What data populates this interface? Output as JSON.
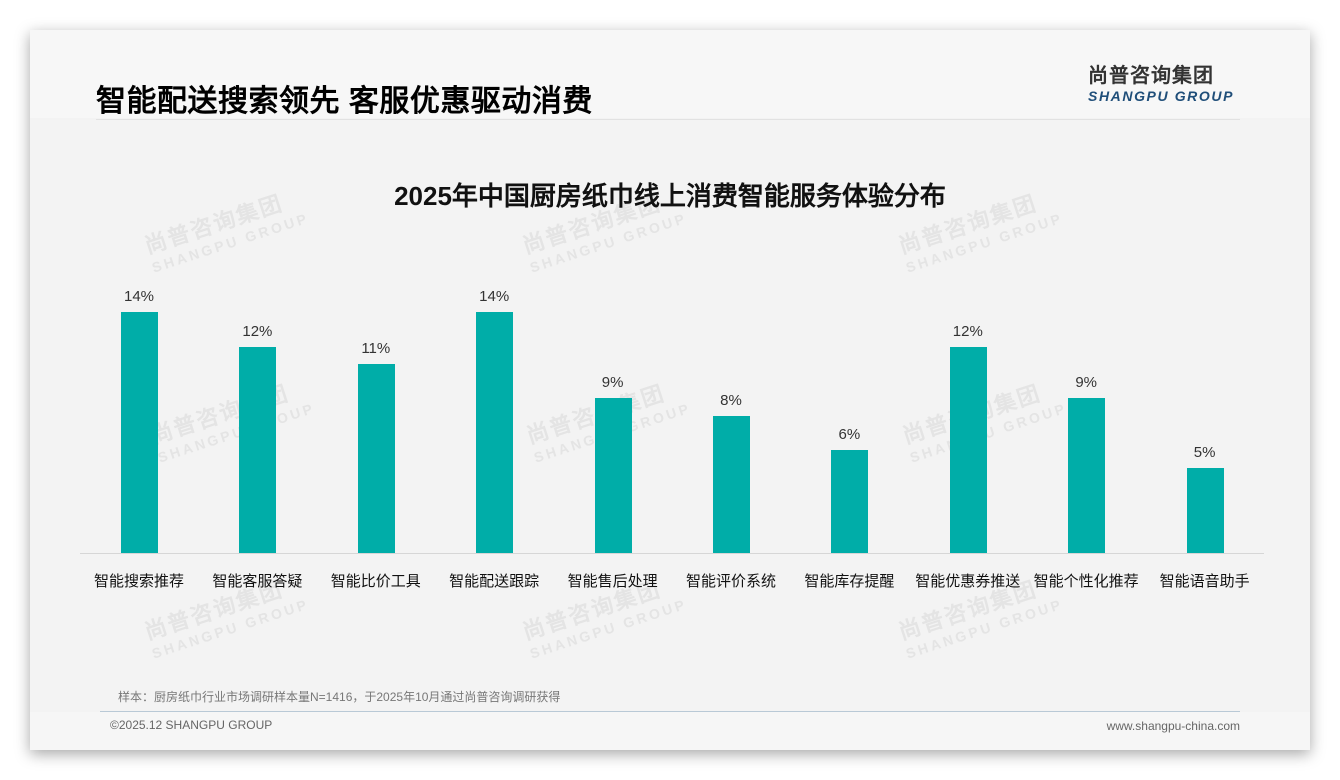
{
  "header": {
    "title": "智能配送搜索领先 客服优惠驱动消费",
    "logo": {
      "cn": "尚普咨询集团",
      "en": "SHANGPU GROUP"
    }
  },
  "watermark": {
    "cn": "尚普咨询集团",
    "en": "SHANGPU GROUP"
  },
  "chart_data": {
    "type": "bar",
    "title": "2025年中国厨房纸巾线上消费智能服务体验分布",
    "categories": [
      "智能搜索推荐",
      "智能客服答疑",
      "智能比价工具",
      "智能配送跟踪",
      "智能售后处理",
      "智能评价系统",
      "智能库存提醒",
      "智能优惠券推送",
      "智能个性化推荐",
      "智能语音助手"
    ],
    "values": [
      14,
      12,
      11,
      14,
      9,
      8,
      6,
      12,
      9,
      5
    ],
    "labels": [
      "14%",
      "12%",
      "11%",
      "14%",
      "9%",
      "8%",
      "6%",
      "12%",
      "9%",
      "5%"
    ],
    "xlabel": "",
    "ylabel": "",
    "unit": "%",
    "ylim": [
      0,
      14
    ],
    "grid": false,
    "legend": "none",
    "bar_color": "#00ada8"
  },
  "footer": {
    "note": "样本：厨房纸巾行业市场调研样本量N=1416，于2025年10月通过尚普咨询调研获得",
    "copyright": "©2025.12 SHANGPU GROUP",
    "website": "www.shangpu-china.com"
  }
}
